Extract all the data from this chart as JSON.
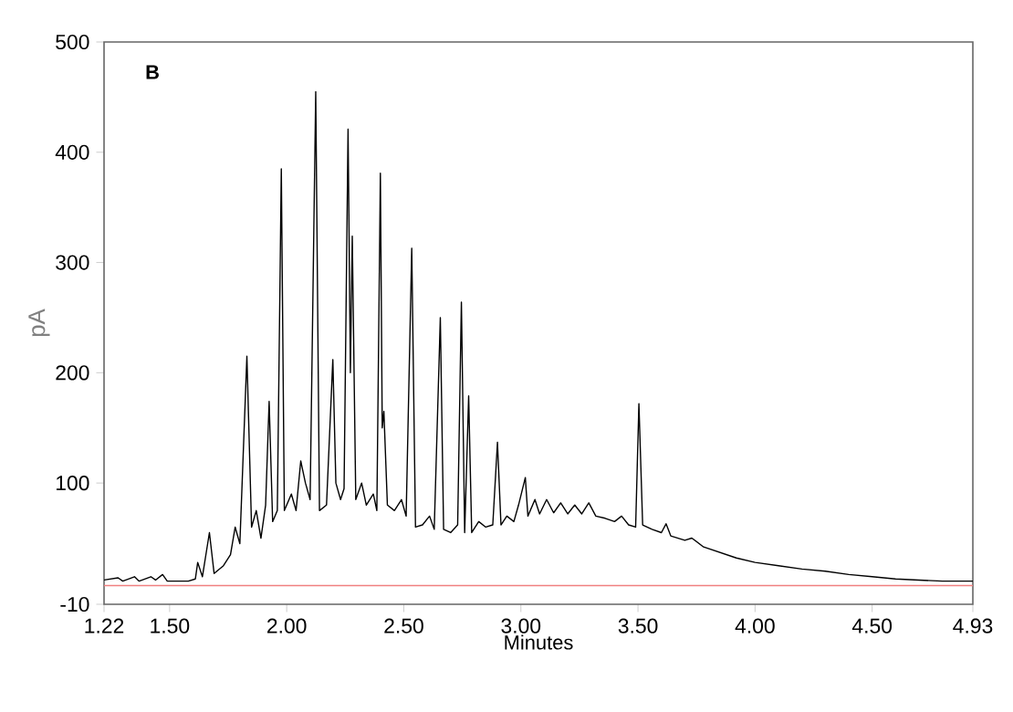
{
  "chart_data": {
    "type": "line",
    "xlabel": "Minutes",
    "ylabel": "pA",
    "annotations": [
      "B"
    ],
    "xlim": [
      1.22,
      4.93
    ],
    "xticks": [
      1.22,
      {
        "value": 1.5,
        "label": "1.50"
      },
      {
        "value": 2,
        "label": "2.00"
      },
      {
        "value": 2.5,
        "label": "2.50"
      },
      {
        "value": 3,
        "label": "3.00"
      },
      {
        "value": 3.5,
        "label": "3.50"
      },
      {
        "value": 4,
        "label": "4.00"
      },
      {
        "value": 4.5,
        "label": "4.50"
      },
      4.93
    ],
    "ylim": [
      -10,
      500
    ],
    "yticks": [
      -10,
      100,
      200,
      300,
      400,
      500
    ],
    "ref_lines": [
      {
        "axis": "y",
        "value": 7,
        "color": "#f08080"
      }
    ],
    "series": [
      {
        "color": "#000000",
        "x": [
          1.22,
          1.28,
          1.3,
          1.35,
          1.37,
          1.42,
          1.44,
          1.47,
          1.49,
          1.58,
          1.61,
          1.62,
          1.64,
          1.67,
          1.69,
          1.73,
          1.76,
          1.78,
          1.8,
          1.83,
          1.85,
          1.87,
          1.89,
          1.91,
          1.925,
          1.94,
          1.96,
          1.977,
          1.99,
          2.02,
          2.04,
          2.06,
          2.08,
          2.1,
          2.124,
          2.14,
          2.17,
          2.197,
          2.21,
          2.23,
          2.245,
          2.262,
          2.272,
          2.28,
          2.295,
          2.32,
          2.34,
          2.37,
          2.385,
          2.4,
          2.408,
          2.415,
          2.43,
          2.46,
          2.49,
          2.51,
          2.534,
          2.55,
          2.58,
          2.61,
          2.63,
          2.656,
          2.67,
          2.7,
          2.73,
          2.746,
          2.76,
          2.777,
          2.79,
          2.82,
          2.85,
          2.88,
          2.9,
          2.915,
          2.94,
          2.97,
          2.99,
          3.019,
          3.03,
          3.06,
          3.08,
          3.11,
          3.14,
          3.17,
          3.2,
          3.23,
          3.26,
          3.29,
          3.32,
          3.36,
          3.4,
          3.43,
          3.46,
          3.49,
          3.504,
          3.52,
          3.56,
          3.6,
          3.62,
          3.64,
          3.7,
          3.73,
          3.78,
          3.85,
          3.92,
          4.0,
          4.1,
          4.2,
          4.3,
          4.4,
          4.5,
          4.6,
          4.7,
          4.8,
          4.93
        ],
        "values": [
          12,
          14,
          11,
          15,
          11,
          15,
          12,
          17,
          11,
          11,
          13,
          28,
          15,
          55,
          18,
          25,
          35,
          60,
          45,
          215,
          60,
          75,
          50,
          80,
          174,
          65,
          75,
          385,
          75,
          90,
          75,
          120,
          100,
          85,
          455,
          75,
          80,
          212,
          100,
          85,
          95,
          421,
          200,
          324,
          85,
          100,
          80,
          90,
          75,
          381,
          150,
          165,
          80,
          75,
          85,
          70,
          313,
          60,
          62,
          70,
          58,
          250,
          58,
          55,
          62,
          264,
          55,
          179,
          55,
          65,
          60,
          62,
          137,
          62,
          70,
          65,
          80,
          105,
          70,
          85,
          72,
          85,
          73,
          82,
          72,
          80,
          72,
          82,
          70,
          68,
          65,
          70,
          62,
          60,
          172,
          62,
          58,
          55,
          63,
          52,
          48,
          50,
          42,
          37,
          32,
          28,
          25,
          22,
          20,
          17,
          15,
          13,
          12,
          11,
          11
        ]
      }
    ]
  }
}
